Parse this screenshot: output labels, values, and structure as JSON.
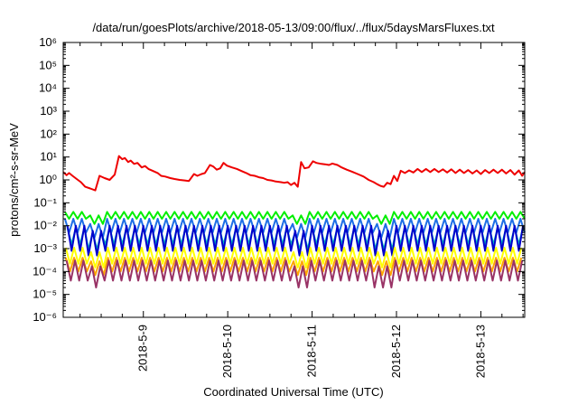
{
  "chart_data": {
    "type": "line",
    "title": "/data/run/goesPlots/archive/2018-05-13/09:00/flux/../flux/5daysMarsFluxes.txt",
    "xlabel": "Coordinated Universal Time (UTC)",
    "ylabel": "protons/cm²-s-sr-MeV",
    "y_scale": "log",
    "ylim": [
      1e-06,
      1000000.0
    ],
    "y_ticks": [
      "10⁻⁶",
      "10⁻⁵",
      "10⁻⁴",
      "10⁻³",
      "10⁻²",
      "10⁻¹",
      "10⁰",
      "10¹",
      "10²",
      "10³",
      "10⁴",
      "10⁵",
      "10⁶"
    ],
    "xlim": [
      0,
      5.47
    ],
    "x_ticks": [
      {
        "value": 0.95,
        "label": "2018-5-9"
      },
      {
        "value": 1.95,
        "label": "2018-5-10"
      },
      {
        "value": 2.95,
        "label": "2018-5-11"
      },
      {
        "value": 3.95,
        "label": "2018-5-12"
      },
      {
        "value": 4.95,
        "label": "2018-5-13"
      }
    ],
    "grid": false,
    "legend": "none",
    "series": [
      {
        "color": "#ee0000",
        "points": [
          [
            0.0,
            2.2
          ],
          [
            0.04,
            1.6
          ],
          [
            0.07,
            2.0
          ],
          [
            0.11,
            1.5
          ],
          [
            0.16,
            1.1
          ],
          [
            0.21,
            0.8
          ],
          [
            0.26,
            0.5
          ],
          [
            0.32,
            0.42
          ],
          [
            0.38,
            0.35
          ],
          [
            0.43,
            1.5
          ],
          [
            0.49,
            1.2
          ],
          [
            0.55,
            1.0
          ],
          [
            0.61,
            1.7
          ],
          [
            0.66,
            11
          ],
          [
            0.7,
            8
          ],
          [
            0.73,
            9
          ],
          [
            0.77,
            6
          ],
          [
            0.8,
            7
          ],
          [
            0.84,
            5
          ],
          [
            0.88,
            5.5
          ],
          [
            0.93,
            3.5
          ],
          [
            0.97,
            4
          ],
          [
            1.01,
            3
          ],
          [
            1.06,
            2.5
          ],
          [
            1.12,
            2.0
          ],
          [
            1.16,
            1.5
          ],
          [
            1.21,
            1.4
          ],
          [
            1.27,
            1.2
          ],
          [
            1.32,
            1.1
          ],
          [
            1.38,
            1.0
          ],
          [
            1.44,
            0.95
          ],
          [
            1.49,
            0.9
          ],
          [
            1.55,
            1.8
          ],
          [
            1.59,
            1.5
          ],
          [
            1.64,
            1.8
          ],
          [
            1.68,
            2.0
          ],
          [
            1.74,
            4.5
          ],
          [
            1.78,
            3.8
          ],
          [
            1.82,
            2.8
          ],
          [
            1.86,
            3.2
          ],
          [
            1.9,
            5.5
          ],
          [
            1.94,
            4.2
          ],
          [
            2.0,
            3.5
          ],
          [
            2.06,
            3.0
          ],
          [
            2.12,
            2.4
          ],
          [
            2.17,
            2.0
          ],
          [
            2.22,
            1.6
          ],
          [
            2.27,
            1.5
          ],
          [
            2.32,
            1.3
          ],
          [
            2.37,
            1.2
          ],
          [
            2.42,
            1.0
          ],
          [
            2.47,
            0.95
          ],
          [
            2.52,
            0.85
          ],
          [
            2.58,
            0.8
          ],
          [
            2.62,
            0.75
          ],
          [
            2.66,
            0.8
          ],
          [
            2.7,
            0.6
          ],
          [
            2.74,
            0.75
          ],
          [
            2.78,
            0.5
          ],
          [
            2.82,
            6
          ],
          [
            2.86,
            3.2
          ],
          [
            2.91,
            3.5
          ],
          [
            2.96,
            6.5
          ],
          [
            3.0,
            5.5
          ],
          [
            3.06,
            5
          ],
          [
            3.1,
            4.8
          ],
          [
            3.15,
            4.5
          ],
          [
            3.19,
            5.2
          ],
          [
            3.25,
            4.5
          ],
          [
            3.3,
            3.5
          ],
          [
            3.36,
            2.8
          ],
          [
            3.42,
            2.3
          ],
          [
            3.49,
            1.8
          ],
          [
            3.56,
            1.4
          ],
          [
            3.62,
            1.0
          ],
          [
            3.68,
            0.8
          ],
          [
            3.72,
            0.65
          ],
          [
            3.76,
            0.55
          ],
          [
            3.8,
            0.5
          ],
          [
            3.84,
            0.75
          ],
          [
            3.88,
            0.65
          ],
          [
            3.92,
            1.5
          ],
          [
            3.96,
            0.9
          ],
          [
            4.0,
            2.5
          ],
          [
            4.05,
            2.0
          ],
          [
            4.1,
            2.6
          ],
          [
            4.15,
            2.1
          ],
          [
            4.2,
            3.0
          ],
          [
            4.25,
            2.2
          ],
          [
            4.3,
            3.0
          ],
          [
            4.35,
            2.2
          ],
          [
            4.4,
            3.0
          ],
          [
            4.45,
            2.2
          ],
          [
            4.5,
            2.9
          ],
          [
            4.55,
            2.1
          ],
          [
            4.6,
            2.9
          ],
          [
            4.65,
            2.0
          ],
          [
            4.7,
            2.8
          ],
          [
            4.75,
            2.0
          ],
          [
            4.8,
            2.7
          ],
          [
            4.85,
            1.9
          ],
          [
            4.9,
            2.6
          ],
          [
            4.95,
            1.8
          ],
          [
            5.0,
            2.7
          ],
          [
            5.05,
            2.0
          ],
          [
            5.1,
            2.8
          ],
          [
            5.15,
            2.0
          ],
          [
            5.2,
            2.8
          ],
          [
            5.25,
            1.9
          ],
          [
            5.3,
            2.7
          ],
          [
            5.35,
            1.7
          ],
          [
            5.4,
            2.6
          ],
          [
            5.44,
            1.5
          ],
          [
            5.47,
            2.2
          ]
        ]
      },
      {
        "color": "#00ee00",
        "pattern": {
          "x0": 0.02,
          "step": 0.1,
          "peak": 0.04,
          "trough": 0.02,
          "peak_dip": 0.028,
          "trough_dip": 0.012,
          "dips": [
            [
              0.3,
              0.48
            ],
            [
              2.7,
              2.9
            ],
            [
              3.68,
              3.9
            ]
          ]
        }
      },
      {
        "color": "#1e6ee6",
        "pattern": {
          "x0": 0.02,
          "step": 0.1,
          "peak": 0.02,
          "trough": 0.005,
          "peak_dip": 0.012,
          "trough_dip": 0.003,
          "dips": [
            [
              0.3,
              0.48
            ],
            [
              2.7,
              2.9
            ],
            [
              3.68,
              3.9
            ]
          ]
        }
      },
      {
        "color": "#00bbbb",
        "pattern": {
          "x0": 0.05,
          "step": 0.1,
          "peak": 0.008,
          "trough": 0.0015,
          "peak_dip": 0.005,
          "trough_dip": 0.0009,
          "dips": [
            [
              0.3,
              0.48
            ],
            [
              2.7,
              2.9
            ],
            [
              3.68,
              3.9
            ]
          ]
        }
      },
      {
        "color": "#0000cc",
        "pattern": {
          "x0": 0.05,
          "step": 0.1,
          "peak": 0.01,
          "trough": 0.0008,
          "peak_dip": 0.006,
          "trough_dip": 0.0005,
          "dips": [
            [
              0.3,
              0.48
            ],
            [
              2.7,
              2.9
            ],
            [
              3.68,
              3.9
            ]
          ]
        }
      },
      {
        "color": "#ffff00",
        "pattern": {
          "x0": 0.03,
          "step": 0.1,
          "peak": 0.0011,
          "trough": 0.00022,
          "peak_dip": 0.0007,
          "trough_dip": 0.00015,
          "dips": [
            [
              0.3,
              0.48
            ],
            [
              2.7,
              2.9
            ],
            [
              3.68,
              3.9
            ]
          ]
        }
      },
      {
        "color": "#ffa500",
        "pattern": {
          "x0": 0.03,
          "step": 0.1,
          "peak": 0.0004,
          "trough": 0.0001,
          "peak_dip": 0.00028,
          "trough_dip": 7e-05,
          "dips": [
            [
              0.3,
              0.48
            ],
            [
              2.7,
              2.9
            ],
            [
              3.68,
              3.9
            ]
          ]
        }
      },
      {
        "color": "#993366",
        "pattern": {
          "x0": 0.04,
          "step": 0.1,
          "peak": 0.0003,
          "trough": 4e-05,
          "peak_dip": 0.00017,
          "trough_dip": 2e-05,
          "dips": [
            [
              0.3,
              0.48
            ],
            [
              2.7,
              2.9
            ],
            [
              3.68,
              3.9
            ]
          ]
        }
      }
    ]
  }
}
